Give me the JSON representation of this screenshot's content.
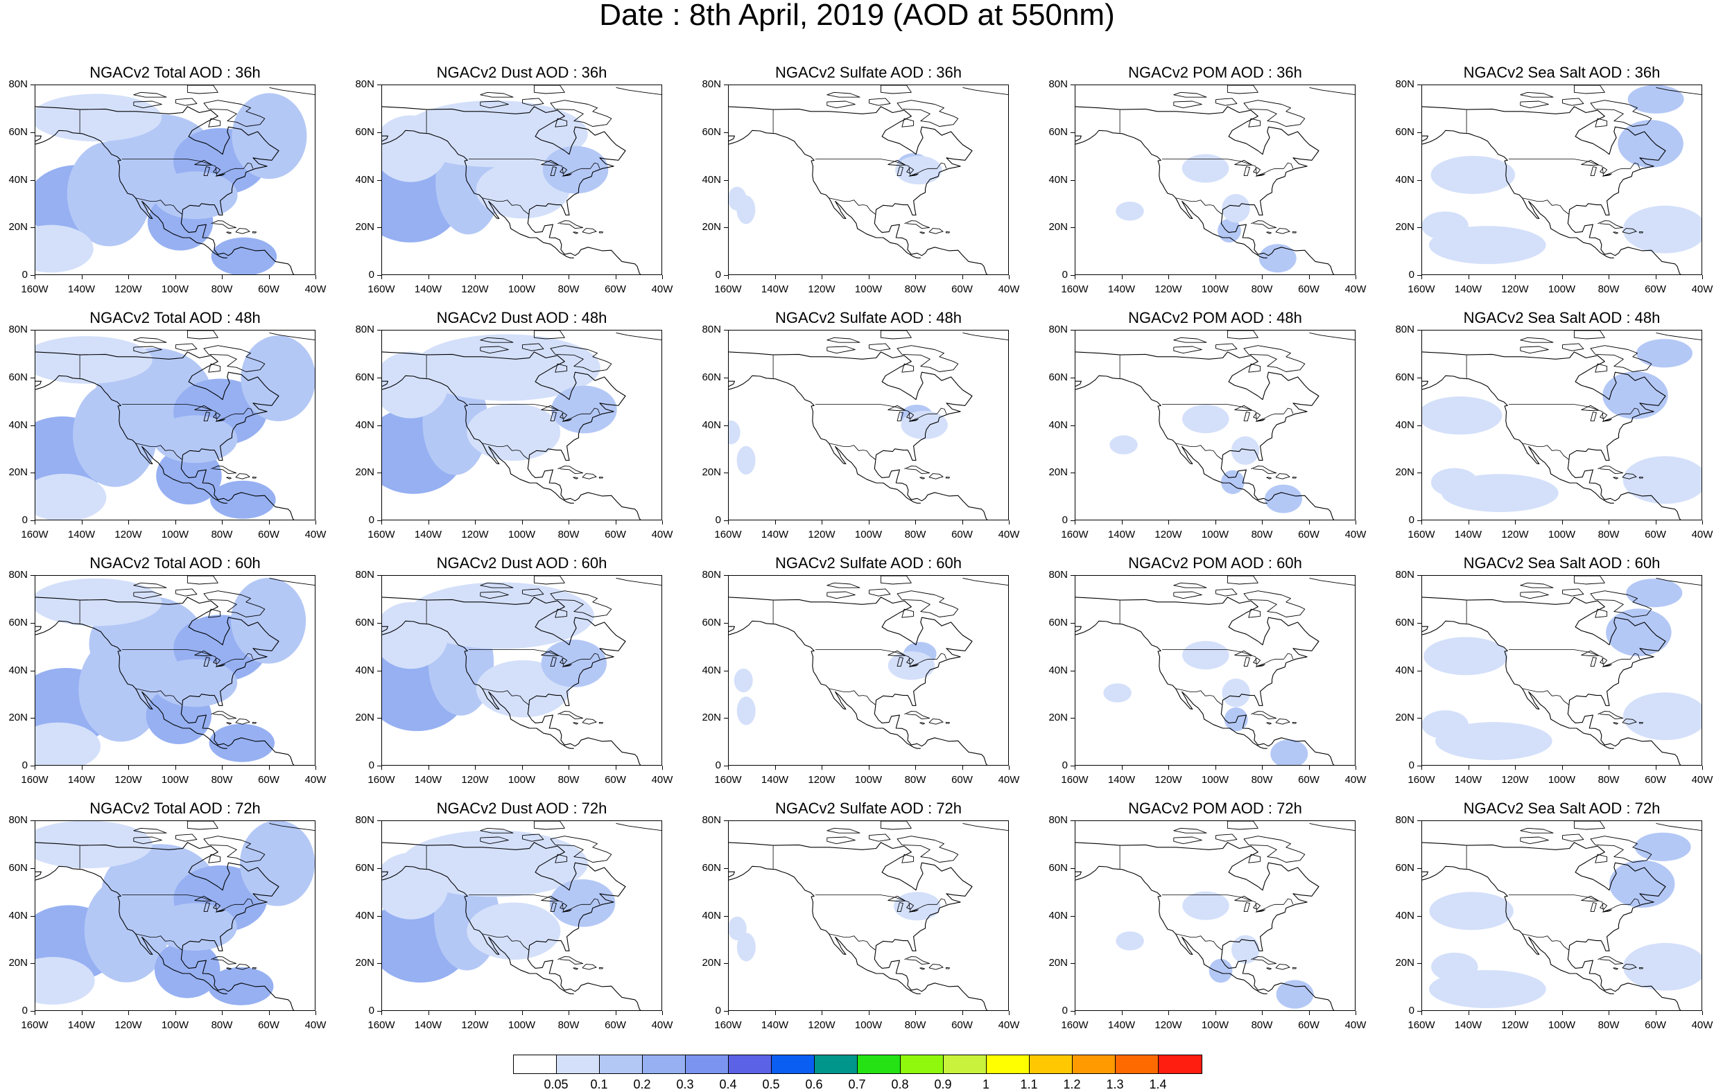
{
  "title": "Date : 8th April, 2019 (AOD at 550nm)",
  "panels": [
    {
      "title": "NGACv2 Total AOD : 36h",
      "variable": "total",
      "forecast_hour": "36h"
    },
    {
      "title": "NGACv2 Dust AOD : 36h",
      "variable": "dust",
      "forecast_hour": "36h"
    },
    {
      "title": "NGACv2 Sulfate AOD : 36h",
      "variable": "sulfate",
      "forecast_hour": "36h"
    },
    {
      "title": "NGACv2 POM AOD : 36h",
      "variable": "pom",
      "forecast_hour": "36h"
    },
    {
      "title": "NGACv2 Sea Salt AOD : 36h",
      "variable": "seasalt",
      "forecast_hour": "36h"
    },
    {
      "title": "NGACv2 Total AOD : 48h",
      "variable": "total",
      "forecast_hour": "48h"
    },
    {
      "title": "NGACv2 Dust AOD : 48h",
      "variable": "dust",
      "forecast_hour": "48h"
    },
    {
      "title": "NGACv2 Sulfate AOD : 48h",
      "variable": "sulfate",
      "forecast_hour": "48h"
    },
    {
      "title": "NGACv2 POM AOD : 48h",
      "variable": "pom",
      "forecast_hour": "48h"
    },
    {
      "title": "NGACv2 Sea Salt AOD : 48h",
      "variable": "seasalt",
      "forecast_hour": "48h"
    },
    {
      "title": "NGACv2 Total AOD : 60h",
      "variable": "total",
      "forecast_hour": "60h"
    },
    {
      "title": "NGACv2 Dust AOD : 60h",
      "variable": "dust",
      "forecast_hour": "60h"
    },
    {
      "title": "NGACv2 Sulfate AOD : 60h",
      "variable": "sulfate",
      "forecast_hour": "60h"
    },
    {
      "title": "NGACv2 POM AOD : 60h",
      "variable": "pom",
      "forecast_hour": "60h"
    },
    {
      "title": "NGACv2 Sea Salt AOD : 60h",
      "variable": "seasalt",
      "forecast_hour": "60h"
    },
    {
      "title": "NGACv2 Total AOD : 72h",
      "variable": "total",
      "forecast_hour": "72h"
    },
    {
      "title": "NGACv2 Dust AOD : 72h",
      "variable": "dust",
      "forecast_hour": "72h"
    },
    {
      "title": "NGACv2 Sulfate AOD : 72h",
      "variable": "sulfate",
      "forecast_hour": "72h"
    },
    {
      "title": "NGACv2 POM AOD : 72h",
      "variable": "pom",
      "forecast_hour": "72h"
    },
    {
      "title": "NGACv2 Sea Salt  AOD : 72h",
      "variable": "seasalt",
      "forecast_hour": "72h"
    }
  ],
  "axes": {
    "y_ticks": [
      "80N",
      "60N",
      "40N",
      "20N",
      "0"
    ],
    "x_ticks": [
      "160W",
      "140W",
      "120W",
      "100W",
      "80W",
      "60W",
      "40W"
    ],
    "lat_range": [
      0,
      80
    ],
    "lon_range": [
      -160,
      -40
    ]
  },
  "colorbar": {
    "labels": [
      "0.05",
      "0.1",
      "0.2",
      "0.3",
      "0.4",
      "0.5",
      "0.6",
      "0.7",
      "0.8",
      "0.9",
      "1",
      "1.1",
      "1.2",
      "1.3",
      "1.4"
    ],
    "colors": [
      "#ffffff",
      "#d4e0fa",
      "#b4c8f6",
      "#96b0f2",
      "#7b94f0",
      "#5b62e6",
      "#0a5ef2",
      "#00968c",
      "#25e215",
      "#8ff80c",
      "#c8f23c",
      "#ffff00",
      "#ffc800",
      "#ff9a00",
      "#ff6a00",
      "#ff1e10"
    ]
  }
}
